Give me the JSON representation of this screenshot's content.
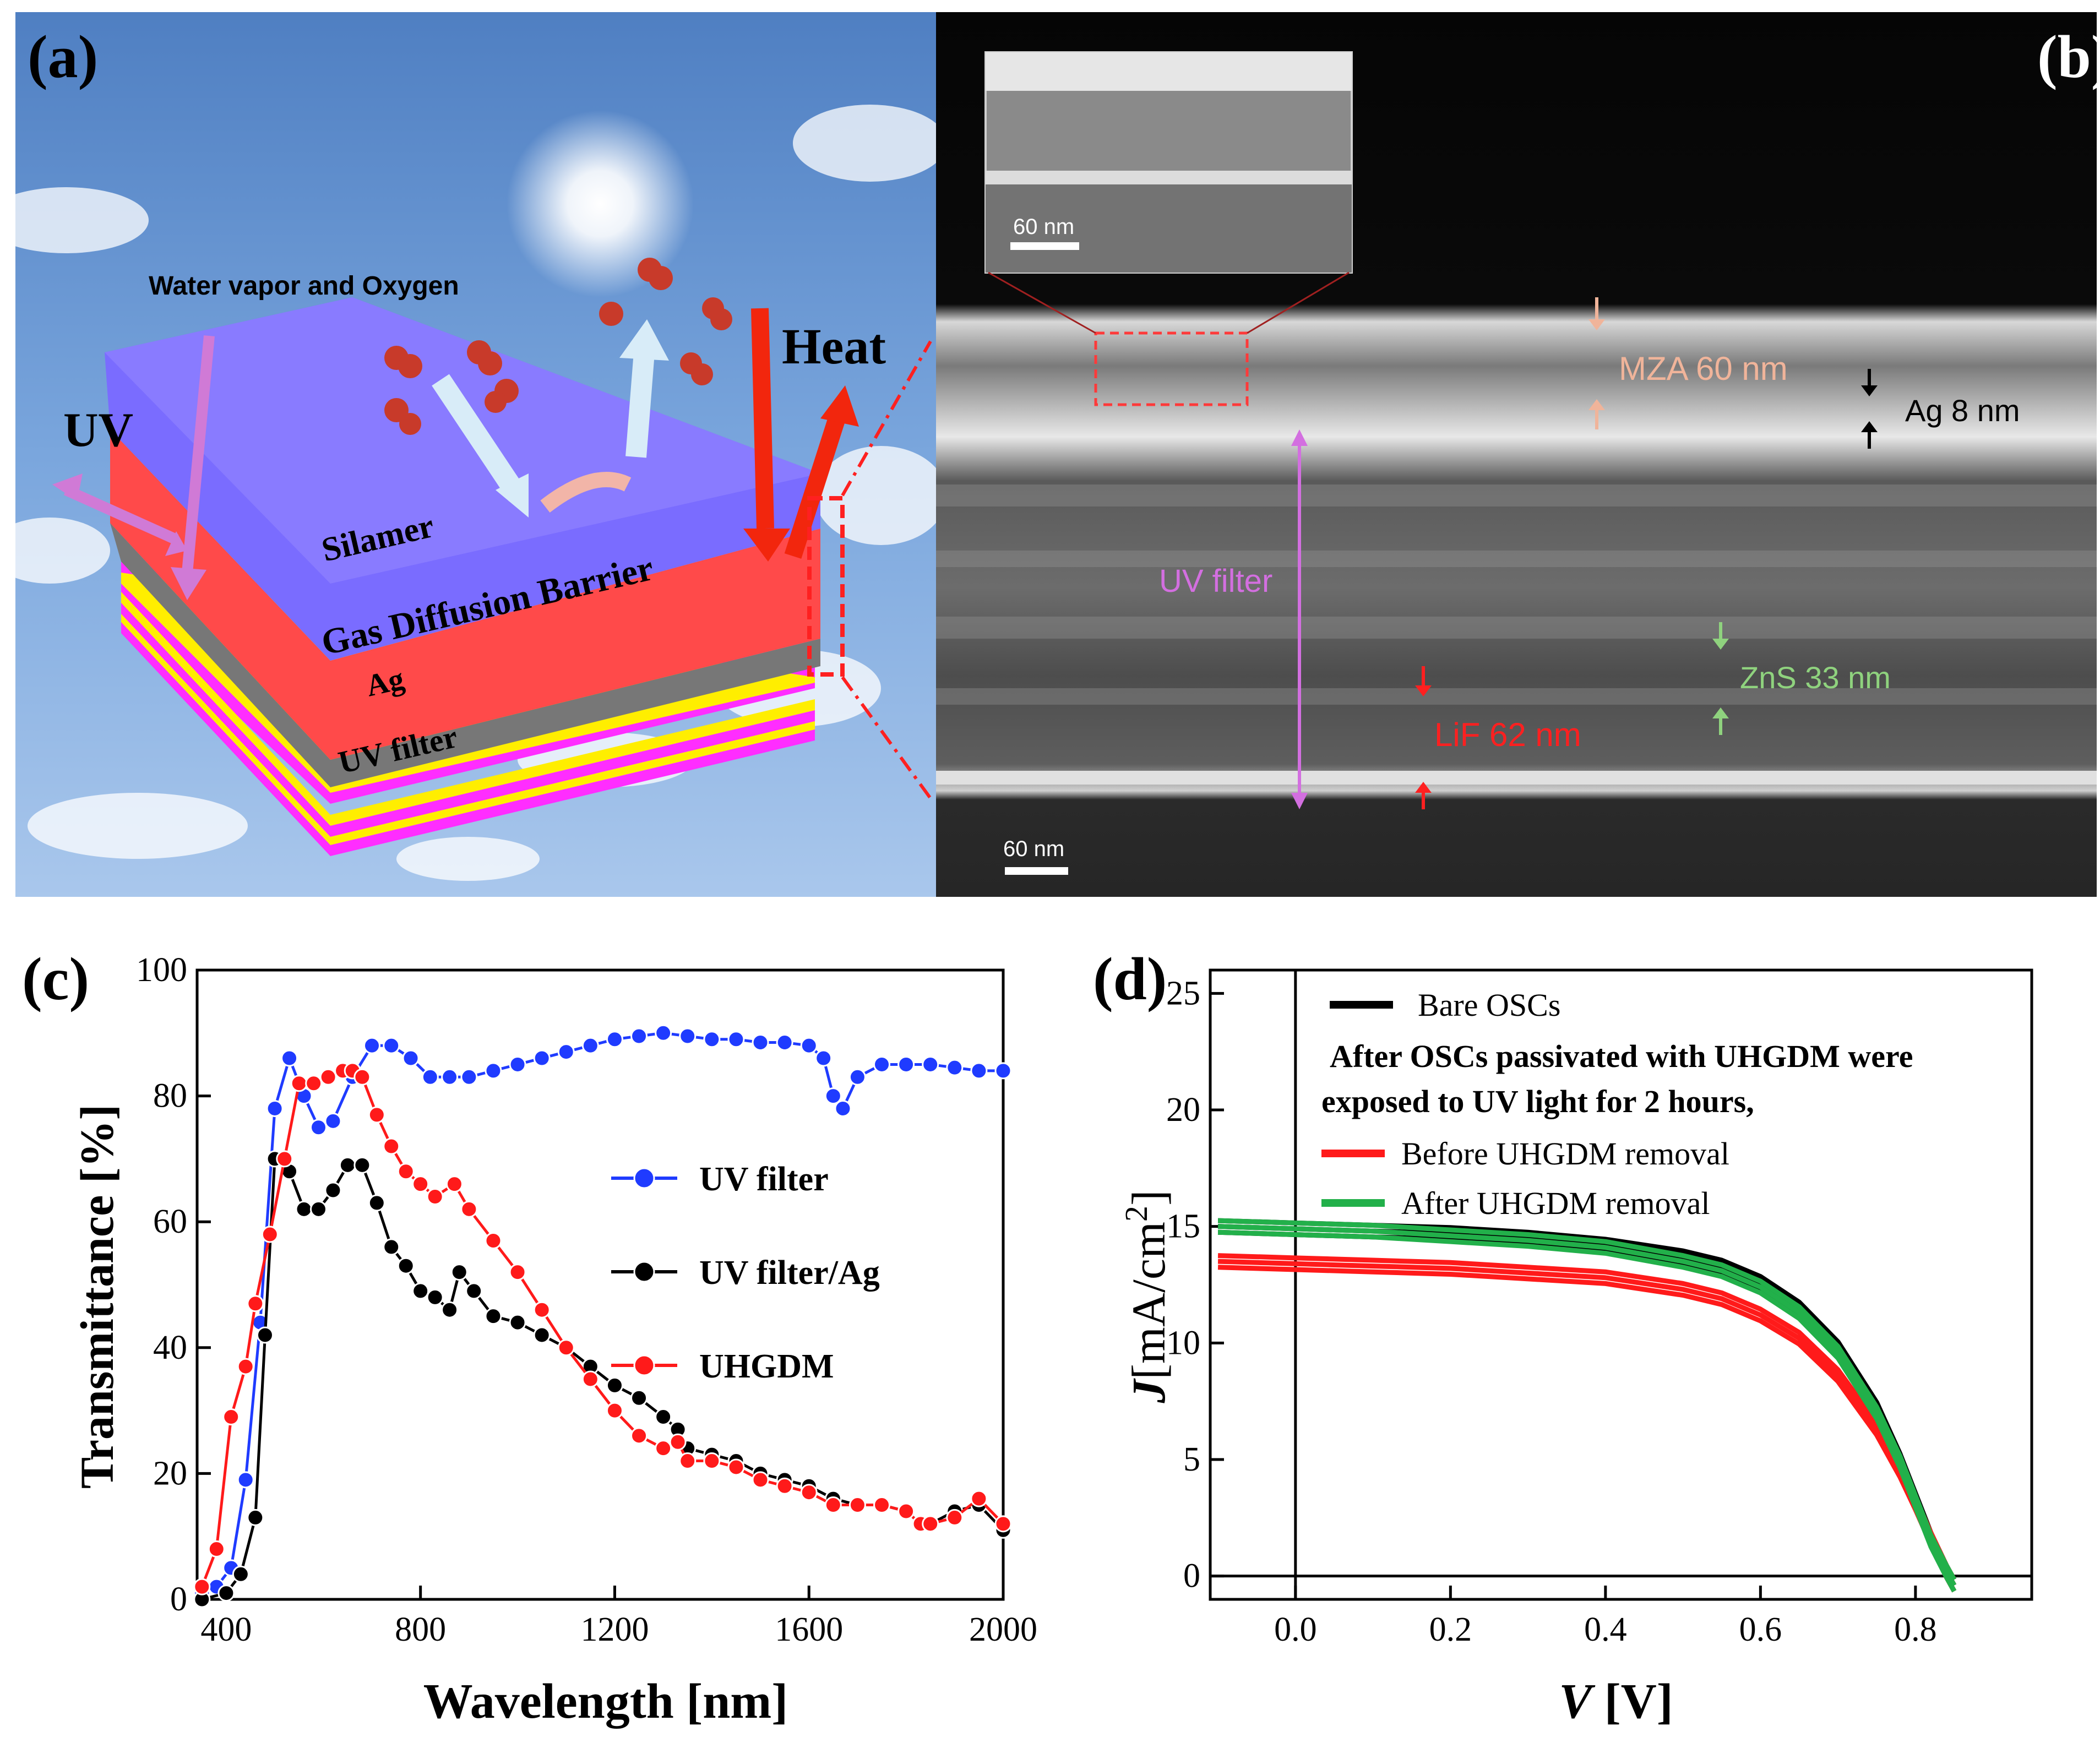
{
  "panels": {
    "a": {
      "label": "(a)",
      "uv": "UV",
      "heat": "Heat",
      "water": "Water vapor and Oxygen",
      "layers": [
        "Silamer",
        "Gas Diffusion Barrier",
        "Ag",
        "UV filter"
      ]
    },
    "b": {
      "label": "(b)",
      "scale_inset": "60 nm",
      "scale_main": "60 nm",
      "mza": "MZA 60 nm",
      "ag": "Ag 8 nm",
      "uvfilter": "UV filter",
      "zns": "ZnS 33 nm",
      "lif": "LiF 62 nm"
    },
    "d": {
      "legend": {
        "bare": "Bare OSCs",
        "note1": "After OSCs passivated with UHGDM were",
        "note2": "exposed to UV light for 2 hours,",
        "before": "Before UHGDM removal",
        "after": "After UHGDM removal"
      },
      "ylabel_main": "J",
      "ylabel_unit": "[mA/cm",
      "ylabel_sup": "2",
      "ylabel_close": "]",
      "xlabel_main": "V",
      "xlabel_unit": " [V]"
    }
  },
  "colors": {
    "uv_filter": "#1f3bff",
    "uv_filter_ag": "#000000",
    "uhgdm": "#ff1a1a",
    "bare": "#000000",
    "before": "#ff1a1a",
    "after": "#22b04a"
  },
  "chart_data": [
    {
      "id": "c",
      "label": "(c)",
      "type": "line",
      "title": "",
      "xlabel": "Wavelength [nm]",
      "ylabel": "Transmittance [%]",
      "xlim": [
        340,
        2000
      ],
      "ylim": [
        0,
        100
      ],
      "xticks": [
        400,
        800,
        1200,
        1600,
        2000
      ],
      "yticks": [
        0,
        20,
        40,
        60,
        80,
        100
      ],
      "legend": "center-right",
      "series": [
        {
          "name": "UV filter",
          "color_key": "uv_filter",
          "x": [
            350,
            380,
            410,
            440,
            470,
            500,
            530,
            560,
            590,
            620,
            660,
            700,
            740,
            780,
            820,
            860,
            900,
            950,
            1000,
            1050,
            1100,
            1150,
            1200,
            1250,
            1300,
            1350,
            1400,
            1450,
            1500,
            1550,
            1600,
            1630,
            1650,
            1670,
            1700,
            1750,
            1800,
            1850,
            1900,
            1950,
            2000
          ],
          "y": [
            1,
            2,
            5,
            19,
            44,
            78,
            86,
            80,
            75,
            76,
            83,
            88,
            88,
            86,
            83,
            83,
            83,
            84,
            85,
            86,
            87,
            88,
            89,
            89.5,
            90,
            89.5,
            89,
            89,
            88.5,
            88.5,
            88,
            86,
            80,
            78,
            83,
            85,
            85,
            85,
            84.5,
            84,
            84
          ]
        },
        {
          "name": "UV filter/Ag",
          "color_key": "uv_filter_ag",
          "x": [
            350,
            400,
            430,
            460,
            480,
            500,
            530,
            560,
            590,
            620,
            650,
            680,
            710,
            740,
            770,
            800,
            830,
            860,
            880,
            910,
            950,
            1000,
            1050,
            1100,
            1150,
            1200,
            1250,
            1300,
            1330,
            1350,
            1400,
            1450,
            1500,
            1550,
            1600,
            1650,
            1700,
            1750,
            1800,
            1830,
            1850,
            1900,
            1950,
            2000
          ],
          "y": [
            0,
            1,
            4,
            13,
            42,
            70,
            68,
            62,
            62,
            65,
            69,
            69,
            63,
            56,
            53,
            49,
            48,
            46,
            52,
            49,
            45,
            44,
            42,
            40,
            37,
            34,
            32,
            29,
            27,
            24,
            23,
            22,
            20,
            19,
            18,
            16,
            15,
            15,
            14,
            12,
            12,
            14,
            15,
            11
          ]
        },
        {
          "name": "UHGDM",
          "color_key": "uhgdm",
          "x": [
            350,
            380,
            410,
            440,
            460,
            490,
            520,
            550,
            580,
            610,
            640,
            660,
            680,
            710,
            740,
            770,
            800,
            830,
            870,
            900,
            950,
            1000,
            1050,
            1100,
            1150,
            1200,
            1250,
            1300,
            1330,
            1350,
            1400,
            1450,
            1500,
            1550,
            1600,
            1650,
            1700,
            1750,
            1800,
            1830,
            1850,
            1900,
            1950,
            2000
          ],
          "y": [
            2,
            8,
            29,
            37,
            47,
            58,
            70,
            82,
            82,
            83,
            84,
            84,
            83,
            77,
            72,
            68,
            66,
            64,
            66,
            62,
            57,
            52,
            46,
            40,
            35,
            30,
            26,
            24,
            25,
            22,
            22,
            21,
            19,
            18,
            17,
            15,
            15,
            15,
            14,
            12,
            12,
            13,
            16,
            12
          ]
        }
      ]
    },
    {
      "id": "d",
      "label": "(d)",
      "type": "line",
      "title": "",
      "xlim": [
        -0.11,
        0.95
      ],
      "ylim": [
        -1,
        26
      ],
      "xticks": [
        0.0,
        0.2,
        0.4,
        0.6,
        0.8
      ],
      "xtick_labels": [
        "0.0",
        "0.2",
        "0.4",
        "0.6",
        "0.8"
      ],
      "yticks": [
        0,
        5,
        10,
        15,
        20,
        25
      ],
      "legend": "top-right",
      "series": [
        {
          "name": "Bare OSCs",
          "color_key": "bare",
          "x": [
            -0.1,
            0.0,
            0.1,
            0.2,
            0.3,
            0.4,
            0.5,
            0.55,
            0.6,
            0.65,
            0.7,
            0.75,
            0.78,
            0.8,
            0.82,
            0.84,
            0.85
          ],
          "y": [
            15.0,
            14.9,
            14.8,
            14.7,
            14.5,
            14.2,
            13.7,
            13.3,
            12.6,
            11.5,
            9.8,
            7.2,
            5.0,
            3.3,
            1.6,
            0.2,
            -0.4
          ]
        },
        {
          "name": "Before UHGDM removal",
          "color_key": "before",
          "x": [
            -0.1,
            0.0,
            0.1,
            0.2,
            0.3,
            0.4,
            0.5,
            0.55,
            0.6,
            0.65,
            0.7,
            0.75,
            0.78,
            0.8,
            0.82,
            0.84,
            0.85
          ],
          "y": [
            13.5,
            13.4,
            13.3,
            13.2,
            13.0,
            12.8,
            12.3,
            11.9,
            11.2,
            10.2,
            8.6,
            6.3,
            4.5,
            3.1,
            1.6,
            0.2,
            -0.4
          ]
        },
        {
          "name": "After UHGDM removal",
          "color_key": "after",
          "x": [
            -0.1,
            0.0,
            0.1,
            0.2,
            0.3,
            0.4,
            0.5,
            0.55,
            0.6,
            0.65,
            0.7,
            0.75,
            0.78,
            0.8,
            0.82,
            0.84,
            0.85
          ],
          "y": [
            15.0,
            14.9,
            14.8,
            14.6,
            14.4,
            14.1,
            13.5,
            13.1,
            12.4,
            11.3,
            9.6,
            7.0,
            4.9,
            3.2,
            1.5,
            0.2,
            -0.4
          ]
        }
      ]
    }
  ]
}
